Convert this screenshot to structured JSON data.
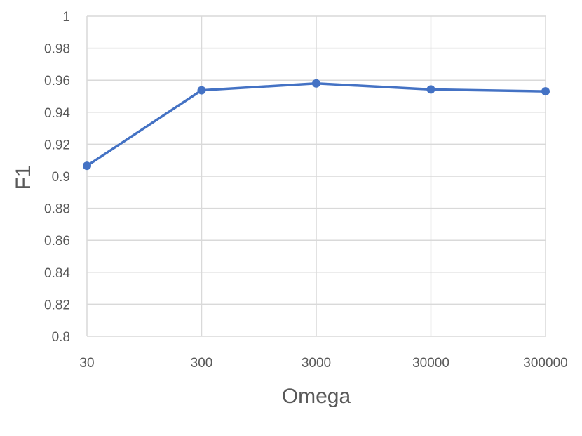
{
  "chart_data": {
    "type": "line",
    "x_scale": "log",
    "grid": "on",
    "x": [
      30,
      300,
      3000,
      30000,
      300000
    ],
    "categories": [
      "30",
      "300",
      "3000",
      "30000",
      "300000"
    ],
    "series": [
      {
        "values": [
          0.9065,
          0.9537,
          0.958,
          0.9542,
          0.953
        ]
      }
    ],
    "xlabel": "Omega",
    "ylabel": "F1",
    "ylim": [
      0.8,
      1
    ],
    "yticks": [
      1,
      0.98,
      0.96,
      0.94,
      0.92,
      0.9,
      0.88,
      0.86,
      0.84,
      0.82,
      0.8
    ],
    "ytick_labels": [
      "1",
      "0.98",
      "0.96",
      "0.94",
      "0.92",
      "0.9",
      "0.88",
      "0.86",
      "0.84",
      "0.82",
      "0.8"
    ],
    "colors": {
      "series": "#4472c4",
      "grid": "#d9d9d9",
      "text": "#595959"
    }
  }
}
